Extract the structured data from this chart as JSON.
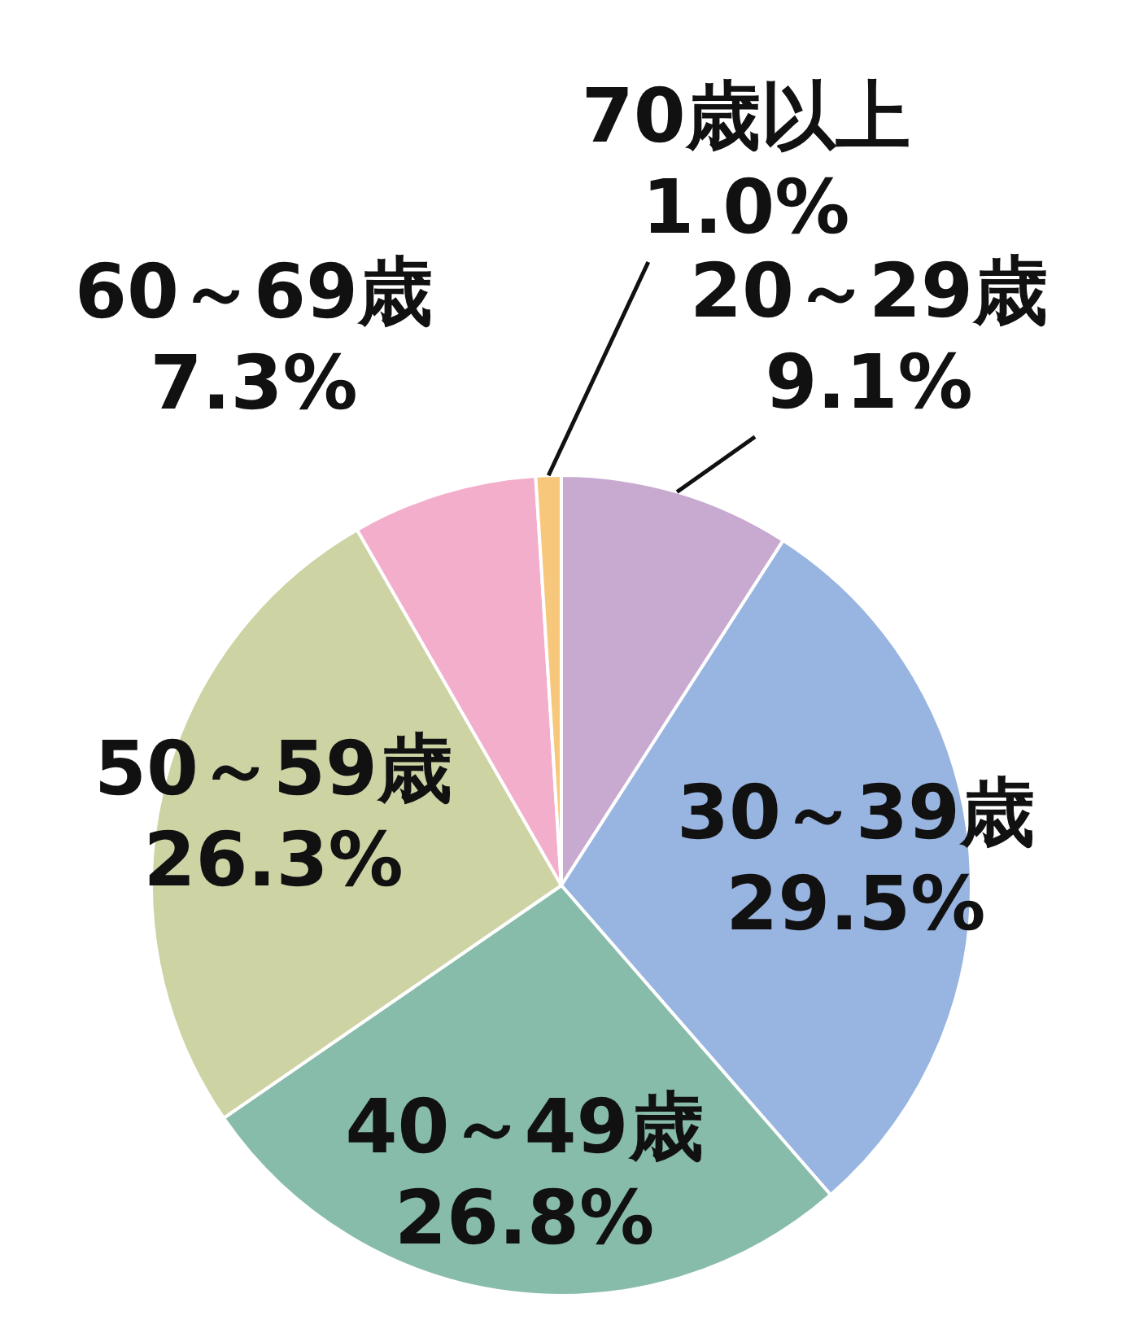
{
  "chart_data": {
    "type": "pie",
    "categories": [
      "20～29歳",
      "30～39歳",
      "40～49歳",
      "50～59歳",
      "60～69歳",
      "70歳以上"
    ],
    "values": [
      9.1,
      29.5,
      26.8,
      26.3,
      7.3,
      1.0
    ],
    "value_labels": [
      "9.1%",
      "29.5%",
      "26.8%",
      "26.3%",
      "7.3%",
      "1.0%"
    ],
    "colors": [
      "#c8a9d0",
      "#98b4e0",
      "#88bcaa",
      "#ced3a4",
      "#f2aecb",
      "#f7c77c"
    ],
    "legend": false
  }
}
